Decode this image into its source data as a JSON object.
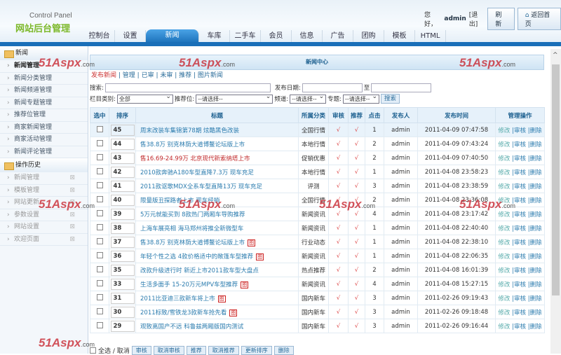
{
  "header": {
    "subtitle": "Control Panel",
    "title": "网站后台管理",
    "greeting": "您好，",
    "user": "admin",
    "logout": "[退出]",
    "refresh": "刷新",
    "home": "返回首页"
  },
  "tabs": [
    "控制台",
    "设置",
    "新闻",
    "车库",
    "二手车",
    "会员",
    "信息",
    "广告",
    "团购",
    "模板",
    "HTML"
  ],
  "active_tab": "新闻",
  "sidebar": {
    "group1": "新闻",
    "items": [
      "新闻管理",
      "新闻分类管理",
      "新闻频道管理",
      "新闻专题管理",
      "推荐位管理",
      "商家新闻管理",
      "商家活动管理",
      "新闻评论管理"
    ],
    "group2": "操作历史",
    "history": [
      "新闻管理",
      "模板管理",
      "网站更新",
      "参数设置",
      "网站设置",
      "欢迎页面"
    ]
  },
  "panel": {
    "title": "新闻中心",
    "links": [
      "发布新闻",
      "管理",
      "已审",
      "未审",
      "推荐",
      "图片新闻"
    ]
  },
  "search": {
    "label": "搜索:",
    "date_label": "发布日期:",
    "to": "至",
    "category_label": "栏目类别:",
    "category_value": "全部",
    "recommend_label": "推荐位:",
    "recommend_value": "--请选择--",
    "channel_label": "频道:",
    "channel_value": "--请选择--",
    "topic_label": "专题:",
    "topic_value": "--请选择--",
    "button": "搜索"
  },
  "table": {
    "headers": [
      "选中",
      "排序",
      "标题",
      "所属分类",
      "审核",
      "推荐",
      "点击",
      "发布人",
      "发布时间",
      "管理操作"
    ],
    "rows": [
      {
        "order": "45",
        "title": "周末改装车集锦第78期 炫酷黑色改装",
        "cat": "全国行情",
        "clicks": "1",
        "time": "2011-04-09 07:47:58"
      },
      {
        "order": "44",
        "title": "售38.8万 别克林荫大道博鳌论坛版上市",
        "cat": "本地行情",
        "clicks": "2",
        "time": "2011-04-09 07:43:24"
      },
      {
        "order": "43",
        "title": "售16.69-24.99万 北京现代新索纳塔上市",
        "cat": "促销优惠",
        "clicks": "2",
        "time": "2011-04-09 07:40:50",
        "red": true
      },
      {
        "order": "42",
        "title": "2010款奔驰A180车型直降7.3万 现车充足",
        "cat": "本地行情",
        "clicks": "1",
        "time": "2011-04-08 23:58:23"
      },
      {
        "order": "41",
        "title": "2011款讴歌MDX全系车型直降13万 现车充足",
        "cat": "评测",
        "clicks": "3",
        "time": "2011-04-08 23:38:59"
      },
      {
        "order": "40",
        "title": "限量版丑探路者上市 现车经销",
        "cat": "全国行情",
        "clicks": "2",
        "time": "2011-04-08 23:36:08"
      },
      {
        "order": "39",
        "title": "5万元就能买到 8款热门两厢车导购推荐",
        "cat": "新闻资讯",
        "clicks": "4",
        "time": "2011-04-08 23:17:42"
      },
      {
        "order": "38",
        "title": "上海车展亮相 海马郑州将推全新微型车",
        "cat": "新闻资讯",
        "clicks": "1",
        "time": "2011-04-08 22:40:40"
      },
      {
        "order": "37",
        "title": "售38.8万 别克林荫大道博鳌论坛版上市",
        "cat": "行业动态",
        "clicks": "1",
        "time": "2011-04-08 22:38:10",
        "img": true
      },
      {
        "order": "36",
        "title": "年轻个性之选 4款价格适中的敞篷车型推荐",
        "cat": "新闻资讯",
        "clicks": "1",
        "time": "2011-04-08 22:06:35",
        "img": true
      },
      {
        "order": "35",
        "title": "改款升级进行时 新近上市2011款车型大盘点",
        "cat": "热点推荐",
        "clicks": "2",
        "time": "2011-04-08 16:01:39"
      },
      {
        "order": "33",
        "title": "生活多面手 15-20万元MPV车型推荐",
        "cat": "新闻资讯",
        "clicks": "4",
        "time": "2011-04-08 15:27:15",
        "img": true
      },
      {
        "order": "31",
        "title": "2011比亚迪三款新车将上市",
        "cat": "国内新车",
        "clicks": "3",
        "time": "2011-02-26 09:19:43",
        "img": true
      },
      {
        "order": "30",
        "title": "2011标致/雪铁龙3款新车抢先看",
        "cat": "国内新车",
        "clicks": "3",
        "time": "2011-02-26 09:18:48",
        "img": true
      },
      {
        "order": "29",
        "title": "观致离国产不远 科鲁兹两厢版国内测试",
        "cat": "国内新车",
        "clicks": "3",
        "time": "2011-02-26 09:16:44"
      }
    ],
    "check": "√",
    "publisher": "admin",
    "img_tag": "图",
    "ops": [
      "修改",
      "审核",
      "删除"
    ]
  },
  "bottom": {
    "select_all": "全选 / 取消",
    "buttons": [
      "审核",
      "取消审核",
      "推荐",
      "取消推荐",
      "更新排序",
      "删除"
    ]
  },
  "watermark": {
    "main": "51Aspx",
    ".com": ".com"
  }
}
